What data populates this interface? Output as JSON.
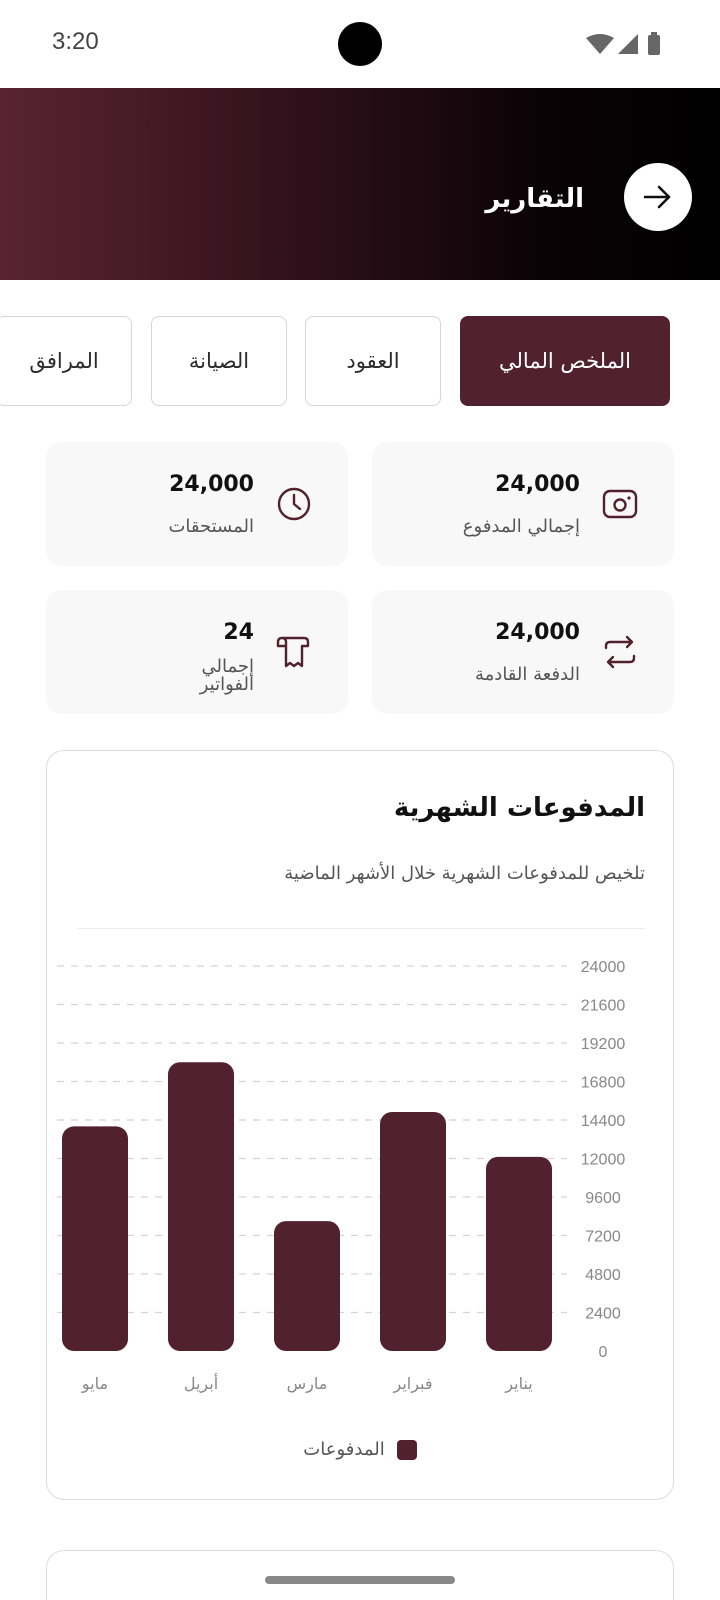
{
  "status": {
    "time": "3:20"
  },
  "header": {
    "title": "التقارير"
  },
  "tabs": [
    {
      "label": "الملخص المالي",
      "active": true
    },
    {
      "label": "العقود",
      "active": false
    },
    {
      "label": "الصيانة",
      "active": false
    },
    {
      "label": "المرافق",
      "active": false
    }
  ],
  "stats": [
    {
      "value": "24,000",
      "label": "إجمالي المدفوع",
      "icon": "camera-card-icon"
    },
    {
      "value": "24,000",
      "label": "المستحقات",
      "icon": "clock-icon"
    },
    {
      "value": "24,000",
      "label": "الدفعة القادمة",
      "icon": "repeat-icon"
    },
    {
      "value": "24",
      "label": "إجمالي الفواتير",
      "icon": "receipt-icon"
    }
  ],
  "chart_section": {
    "title": "المدفوعات الشهرية",
    "subtitle": "تلخيص للمدفوعات الشهرية خلال الأشهر الماضية"
  },
  "chart_data": {
    "type": "bar",
    "categories": [
      "يناير",
      "فبراير",
      "مارس",
      "أبريل",
      "مايو"
    ],
    "series": [
      {
        "name": "المدفوعات",
        "values": [
          12100,
          14900,
          8100,
          18000,
          14000
        ]
      }
    ],
    "ylim": [
      0,
      24000
    ],
    "yticks": [
      0,
      2400,
      4800,
      7200,
      9600,
      12000,
      14400,
      16800,
      19200,
      21600,
      24000
    ],
    "grid": true,
    "legend_position": "bottom",
    "color": "#52212f"
  },
  "colors": {
    "accent": "#52212f"
  }
}
